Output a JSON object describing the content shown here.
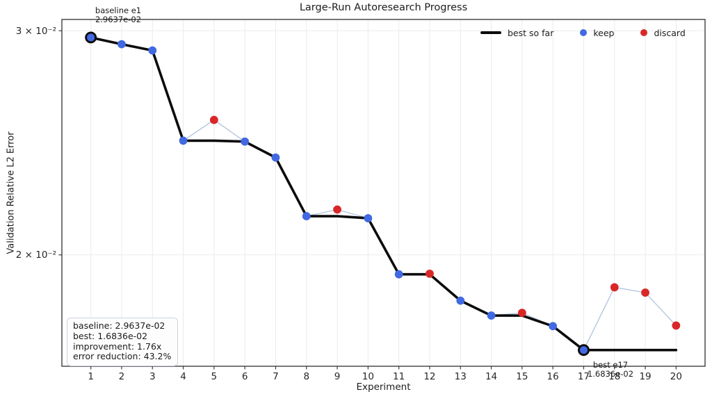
{
  "chart_data": {
    "type": "line",
    "title": "Large-Run Autoresearch Progress",
    "xlabel": "Experiment",
    "ylabel": "Validation Relative L2 Error",
    "yscale": "log",
    "grid": true,
    "legend_position": "upper right inside, no frame",
    "xlim": [
      0.06,
      20.94
    ],
    "ylim": [
      0.01635,
      0.03062
    ],
    "x": [
      1,
      2,
      3,
      4,
      5,
      6,
      7,
      8,
      9,
      10,
      11,
      12,
      13,
      14,
      15,
      16,
      17,
      18,
      19,
      20
    ],
    "yticks": [
      {
        "value": 0.03,
        "label": "3 × 10⁻²"
      },
      {
        "value": 0.02,
        "label": "2 × 10⁻²"
      }
    ],
    "series": [
      {
        "name": "experiments",
        "values": [
          0.029637,
          0.02928,
          0.02895,
          0.02459,
          0.02553,
          0.02455,
          0.02385,
          0.02145,
          0.02171,
          0.02137,
          0.01931,
          0.01933,
          0.01841,
          0.01792,
          0.01801,
          0.01758,
          0.016836,
          0.01886,
          0.01868,
          0.0176
        ],
        "status": [
          "keep",
          "keep",
          "keep",
          "keep",
          "discard",
          "keep",
          "keep",
          "keep",
          "discard",
          "keep",
          "keep",
          "discard",
          "keep",
          "keep",
          "discard",
          "keep",
          "keep",
          "discard",
          "discard",
          "discard"
        ],
        "highlight": [
          1,
          17
        ]
      },
      {
        "name": "best so far",
        "values": [
          0.029637,
          0.02928,
          0.02895,
          0.02459,
          0.02459,
          0.02455,
          0.02385,
          0.02145,
          0.02145,
          0.02137,
          0.01931,
          0.01931,
          0.01841,
          0.01792,
          0.01792,
          0.01758,
          0.016836,
          0.016836,
          0.016836,
          0.016836
        ]
      }
    ],
    "legend": [
      {
        "label": "best so far",
        "marker": "line",
        "color": "#0b0b0b"
      },
      {
        "label": "keep",
        "marker": "dot",
        "color": "#4169e1"
      },
      {
        "label": "discard",
        "marker": "dot",
        "color": "#d92728"
      }
    ],
    "annotations": [
      {
        "id": "baseline",
        "lines": [
          "baseline e1",
          "2.9637e-02"
        ],
        "anchor_experiment": 1
      },
      {
        "id": "best",
        "lines": [
          "best e17",
          "1.6836e-02"
        ],
        "anchor_experiment": 17
      }
    ],
    "stats_box": {
      "lines": [
        "baseline: 2.9637e-02",
        "best: 1.6836e-02",
        "improvement: 1.76x",
        "error reduction: 43.2%"
      ]
    },
    "colors": {
      "best_line": "#0b0b0b",
      "keep": "#4169e1",
      "discard": "#d92728",
      "raw_line": "#b0c4de",
      "grid": "#ebebeb",
      "spine": "#3d3d3d",
      "tick_text": "#262626"
    }
  }
}
